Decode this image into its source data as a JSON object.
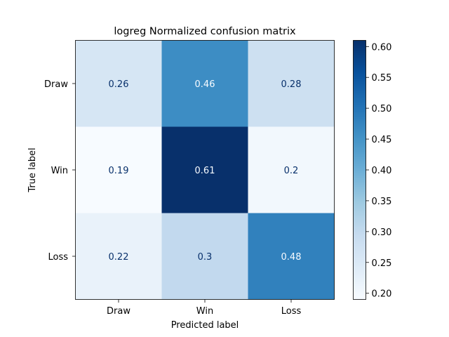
{
  "chart_data": {
    "type": "heatmap",
    "title": "logreg Normalized confusion matrix",
    "xlabel": "Predicted label",
    "ylabel": "True label",
    "x_categories": [
      "Draw",
      "Win",
      "Loss"
    ],
    "y_categories": [
      "Draw",
      "Win",
      "Loss"
    ],
    "values": [
      [
        0.26,
        0.46,
        0.28
      ],
      [
        0.19,
        0.61,
        0.2
      ],
      [
        0.22,
        0.3,
        0.48
      ]
    ],
    "cell_labels": [
      [
        "0.26",
        "0.46",
        "0.28"
      ],
      [
        "0.19",
        "0.61",
        "0.2"
      ],
      [
        "0.22",
        "0.3",
        "0.48"
      ]
    ],
    "colormap": "Blues",
    "colorbar": {
      "min": 0.19,
      "max": 0.61,
      "ticks": [
        0.2,
        0.25,
        0.3,
        0.35,
        0.4,
        0.45,
        0.5,
        0.55,
        0.6
      ],
      "tick_labels": [
        "0.20",
        "0.25",
        "0.30",
        "0.35",
        "0.40",
        "0.45",
        "0.50",
        "0.55",
        "0.60"
      ]
    },
    "colors": {
      "text_dark": "#08306b",
      "text_light": "#f7fbff",
      "axis": "#000000"
    }
  }
}
